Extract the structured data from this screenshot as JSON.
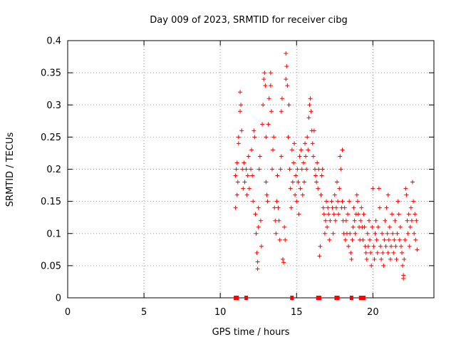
{
  "chart_data": {
    "type": "scatter",
    "title": "Day 009 of 2023, SRMTID for receiver cibg",
    "xlabel": "GPS time / hours",
    "ylabel": "SRMTID / TECUs",
    "xlim": [
      0,
      24
    ],
    "ylim": [
      0,
      0.4
    ],
    "grid": true,
    "marker": "+",
    "color": "#ff0000",
    "x_ticks": [
      0,
      5,
      10,
      15,
      20
    ],
    "x_tick_labels": [
      "0",
      "5",
      "10",
      "15",
      "20"
    ],
    "y_ticks": [
      0,
      0.05,
      0.1,
      0.15,
      0.2,
      0.25,
      0.3,
      0.35,
      0.4
    ],
    "y_tick_labels": [
      "0",
      "0.05",
      "0.1",
      "0.15",
      "0.2",
      "0.25",
      "0.3",
      "0.35",
      "0.4"
    ],
    "zero_markers_x": [
      11.0,
      11.1,
      11.7,
      14.7,
      16.4,
      16.5,
      17.6,
      17.7,
      18.6,
      19.2,
      19.3,
      19.4
    ],
    "series": [
      {
        "name": "SRMTID",
        "points": [
          [
            11.0,
            0.14
          ],
          [
            11.0,
            0.19
          ],
          [
            11.05,
            0.2
          ],
          [
            11.1,
            0.16
          ],
          [
            11.1,
            0.21
          ],
          [
            11.15,
            0.18
          ],
          [
            11.2,
            0.24
          ],
          [
            11.2,
            0.25
          ],
          [
            11.3,
            0.32
          ],
          [
            11.3,
            0.29
          ],
          [
            11.35,
            0.3
          ],
          [
            11.4,
            0.26
          ],
          [
            11.45,
            0.2
          ],
          [
            11.5,
            0.17
          ],
          [
            11.55,
            0.21
          ],
          [
            11.6,
            0.18
          ],
          [
            11.7,
            0.2
          ],
          [
            11.75,
            0.16
          ],
          [
            11.8,
            0.19
          ],
          [
            11.85,
            0.22
          ],
          [
            11.9,
            0.17
          ],
          [
            12.0,
            0.2
          ],
          [
            12.05,
            0.23
          ],
          [
            12.1,
            0.19
          ],
          [
            12.15,
            0.15
          ],
          [
            12.2,
            0.26
          ],
          [
            12.25,
            0.25
          ],
          [
            12.3,
            0.13
          ],
          [
            12.35,
            0.1
          ],
          [
            12.4,
            0.07
          ],
          [
            12.45,
            0.045
          ],
          [
            12.45,
            0.056
          ],
          [
            12.5,
            0.11
          ],
          [
            12.5,
            0.14
          ],
          [
            12.55,
            0.2
          ],
          [
            12.6,
            0.22
          ],
          [
            12.65,
            0.12
          ],
          [
            12.7,
            0.08
          ],
          [
            12.75,
            0.27
          ],
          [
            12.8,
            0.3
          ],
          [
            12.85,
            0.34
          ],
          [
            12.9,
            0.35
          ],
          [
            12.95,
            0.33
          ],
          [
            13.0,
            0.25
          ],
          [
            13.0,
            0.18
          ],
          [
            13.05,
            0.16
          ],
          [
            13.1,
            0.15
          ],
          [
            13.15,
            0.27
          ],
          [
            13.2,
            0.31
          ],
          [
            13.3,
            0.35
          ],
          [
            13.3,
            0.33
          ],
          [
            13.35,
            0.29
          ],
          [
            13.4,
            0.2
          ],
          [
            13.45,
            0.23
          ],
          [
            13.5,
            0.25
          ],
          [
            13.55,
            0.14
          ],
          [
            13.6,
            0.12
          ],
          [
            13.65,
            0.1
          ],
          [
            13.7,
            0.15
          ],
          [
            13.75,
            0.19
          ],
          [
            13.8,
            0.14
          ],
          [
            13.85,
            0.12
          ],
          [
            13.9,
            0.09
          ],
          [
            13.95,
            0.2
          ],
          [
            14.0,
            0.22
          ],
          [
            14.0,
            0.29
          ],
          [
            14.05,
            0.31
          ],
          [
            14.1,
            0.06
          ],
          [
            14.15,
            0.055
          ],
          [
            14.2,
            0.11
          ],
          [
            14.25,
            0.09
          ],
          [
            14.3,
            0.34
          ],
          [
            14.3,
            0.38
          ],
          [
            14.35,
            0.36
          ],
          [
            14.4,
            0.33
          ],
          [
            14.45,
            0.25
          ],
          [
            14.5,
            0.3
          ],
          [
            14.55,
            0.2
          ],
          [
            14.6,
            0.17
          ],
          [
            14.65,
            0.14
          ],
          [
            14.7,
            0.23
          ],
          [
            14.75,
            0.18
          ],
          [
            14.8,
            0.21
          ],
          [
            14.85,
            0.24
          ],
          [
            14.9,
            0.16
          ],
          [
            14.95,
            0.19
          ],
          [
            15.0,
            0.15
          ],
          [
            15.05,
            0.2
          ],
          [
            15.1,
            0.18
          ],
          [
            15.15,
            0.13
          ],
          [
            15.2,
            0.22
          ],
          [
            15.25,
            0.17
          ],
          [
            15.3,
            0.23
          ],
          [
            15.35,
            0.2
          ],
          [
            15.4,
            0.16
          ],
          [
            15.45,
            0.21
          ],
          [
            15.5,
            0.18
          ],
          [
            15.55,
            0.24
          ],
          [
            15.6,
            0.22
          ],
          [
            15.65,
            0.2
          ],
          [
            15.7,
            0.25
          ],
          [
            15.75,
            0.23
          ],
          [
            15.8,
            0.28
          ],
          [
            15.85,
            0.3
          ],
          [
            15.9,
            0.31
          ],
          [
            15.95,
            0.29
          ],
          [
            16.0,
            0.26
          ],
          [
            16.05,
            0.24
          ],
          [
            16.1,
            0.22
          ],
          [
            16.15,
            0.26
          ],
          [
            16.2,
            0.2
          ],
          [
            16.25,
            0.19
          ],
          [
            16.3,
            0.18
          ],
          [
            16.35,
            0.21
          ],
          [
            16.4,
            0.17
          ],
          [
            16.45,
            0.2
          ],
          [
            16.5,
            0.065
          ],
          [
            16.55,
            0.08
          ],
          [
            16.6,
            0.16
          ],
          [
            16.65,
            0.19
          ],
          [
            16.7,
            0.2
          ],
          [
            16.75,
            0.14
          ],
          [
            16.8,
            0.13
          ],
          [
            16.85,
            0.1
          ],
          [
            16.9,
            0.12
          ],
          [
            16.95,
            0.15
          ],
          [
            17.0,
            0.11
          ],
          [
            17.05,
            0.14
          ],
          [
            17.1,
            0.13
          ],
          [
            17.15,
            0.09
          ],
          [
            17.2,
            0.12
          ],
          [
            17.3,
            0.15
          ],
          [
            17.35,
            0.14
          ],
          [
            17.4,
            0.1
          ],
          [
            17.45,
            0.13
          ],
          [
            17.5,
            0.16
          ],
          [
            17.55,
            0.12
          ],
          [
            17.6,
            0.14
          ],
          [
            17.65,
            0.18
          ],
          [
            17.7,
            0.15
          ],
          [
            17.75,
            0.13
          ],
          [
            17.8,
            0.17
          ],
          [
            17.85,
            0.22
          ],
          [
            17.9,
            0.2
          ],
          [
            17.95,
            0.14
          ],
          [
            18.0,
            0.23
          ],
          [
            18.0,
            0.15
          ],
          [
            18.05,
            0.12
          ],
          [
            18.1,
            0.1
          ],
          [
            18.15,
            0.14
          ],
          [
            18.2,
            0.09
          ],
          [
            18.25,
            0.12
          ],
          [
            18.3,
            0.1
          ],
          [
            18.35,
            0.13
          ],
          [
            18.4,
            0.08
          ],
          [
            18.45,
            0.15
          ],
          [
            18.5,
            0.1
          ],
          [
            18.55,
            0.07
          ],
          [
            18.6,
            0.06
          ],
          [
            18.65,
            0.09
          ],
          [
            18.7,
            0.11
          ],
          [
            18.75,
            0.14
          ],
          [
            18.8,
            0.12
          ],
          [
            18.85,
            0.1
          ],
          [
            18.9,
            0.13
          ],
          [
            18.95,
            0.16
          ],
          [
            19.0,
            0.15
          ],
          [
            19.05,
            0.13
          ],
          [
            19.1,
            0.11
          ],
          [
            19.15,
            0.09
          ],
          [
            19.2,
            0.12
          ],
          [
            19.25,
            0.14
          ],
          [
            19.3,
            0.11
          ],
          [
            19.35,
            0.09
          ],
          [
            19.4,
            0.13
          ],
          [
            19.45,
            0.11
          ],
          [
            19.5,
            0.08
          ],
          [
            19.55,
            0.07
          ],
          [
            19.6,
            0.06
          ],
          [
            19.65,
            0.1
          ],
          [
            19.7,
            0.08
          ],
          [
            19.75,
            0.12
          ],
          [
            19.8,
            0.09
          ],
          [
            19.85,
            0.07
          ],
          [
            19.9,
            0.05
          ],
          [
            19.95,
            0.11
          ],
          [
            20.0,
            0.17
          ],
          [
            20.05,
            0.08
          ],
          [
            20.1,
            0.06
          ],
          [
            20.15,
            0.1
          ],
          [
            20.2,
            0.12
          ],
          [
            20.25,
            0.09
          ],
          [
            20.3,
            0.07
          ],
          [
            20.35,
            0.11
          ],
          [
            20.4,
            0.17
          ],
          [
            20.45,
            0.14
          ],
          [
            20.5,
            0.08
          ],
          [
            20.55,
            0.06
          ],
          [
            20.6,
            0.1
          ],
          [
            20.65,
            0.07
          ],
          [
            20.7,
            0.05
          ],
          [
            20.75,
            0.09
          ],
          [
            20.8,
            0.12
          ],
          [
            20.85,
            0.08
          ],
          [
            20.9,
            0.14
          ],
          [
            20.95,
            0.1
          ],
          [
            21.0,
            0.16
          ],
          [
            21.0,
            0.07
          ],
          [
            21.05,
            0.09
          ],
          [
            21.1,
            0.11
          ],
          [
            21.15,
            0.06
          ],
          [
            21.2,
            0.08
          ],
          [
            21.25,
            0.13
          ],
          [
            21.3,
            0.1
          ],
          [
            21.35,
            0.07
          ],
          [
            21.4,
            0.09
          ],
          [
            21.45,
            0.12
          ],
          [
            21.5,
            0.08
          ],
          [
            21.55,
            0.06
          ],
          [
            21.6,
            0.1
          ],
          [
            21.65,
            0.15
          ],
          [
            21.7,
            0.13
          ],
          [
            21.75,
            0.09
          ],
          [
            21.8,
            0.11
          ],
          [
            21.85,
            0.08
          ],
          [
            21.9,
            0.07
          ],
          [
            21.95,
            0.05
          ],
          [
            22.0,
            0.035
          ],
          [
            22.0,
            0.03
          ],
          [
            22.05,
            0.06
          ],
          [
            22.1,
            0.09
          ],
          [
            22.15,
            0.17
          ],
          [
            22.2,
            0.16
          ],
          [
            22.25,
            0.12
          ],
          [
            22.3,
            0.1
          ],
          [
            22.35,
            0.13
          ],
          [
            22.4,
            0.08
          ],
          [
            22.45,
            0.11
          ],
          [
            22.5,
            0.14
          ],
          [
            22.55,
            0.12
          ],
          [
            22.6,
            0.18
          ],
          [
            22.65,
            0.15
          ],
          [
            22.7,
            0.1
          ],
          [
            22.75,
            0.13
          ],
          [
            22.8,
            0.09
          ],
          [
            22.85,
            0.12
          ],
          [
            22.9,
            0.075
          ]
        ]
      }
    ]
  }
}
